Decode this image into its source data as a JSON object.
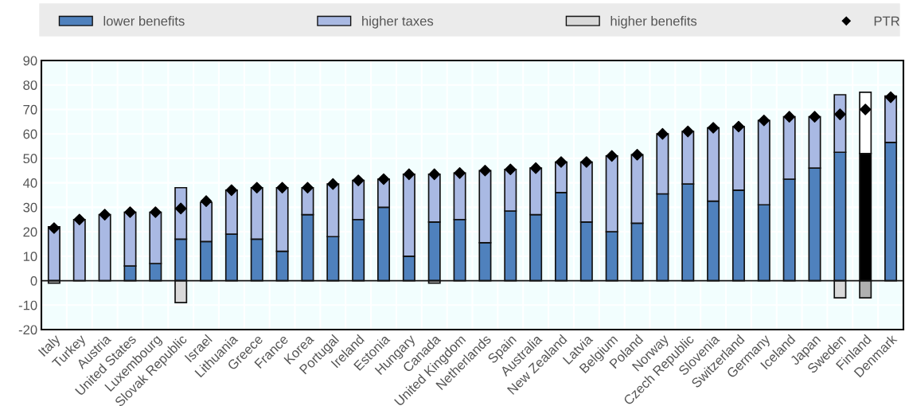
{
  "chart_data": {
    "type": "bar",
    "stacked": true,
    "legend": "top",
    "grid": true,
    "ylim": [
      -20,
      90
    ],
    "yticks": [
      -20,
      -10,
      0,
      10,
      20,
      30,
      40,
      50,
      60,
      70,
      80,
      90
    ],
    "categories": [
      "Italy",
      "Turkey",
      "Austria",
      "United States",
      "Luxembourg",
      "Slovak Republic",
      "Israel",
      "Lithuania",
      "Greece",
      "France",
      "Korea",
      "Portugal",
      "Ireland",
      "Estonia",
      "Hungary",
      "Canada",
      "United Kingdom",
      "Netherlands",
      "Spain",
      "Australia",
      "New Zealand",
      "Latvia",
      "Belgium",
      "Poland",
      "Norway",
      "Czech Republic",
      "Slovenia",
      "Switzerland",
      "Germany",
      "Iceland",
      "Japan",
      "Sweden",
      "Finland",
      "Denmark"
    ],
    "series": [
      {
        "name": "lower benefits",
        "color": "#4f81bd",
        "colors": [
          "#4f81bd",
          "#4f81bd",
          "#4f81bd",
          "#4f81bd",
          "#4f81bd",
          "#4f81bd",
          "#4f81bd",
          "#4f81bd",
          "#4f81bd",
          "#4f81bd",
          "#4f81bd",
          "#4f81bd",
          "#4f81bd",
          "#4f81bd",
          "#4f81bd",
          "#4f81bd",
          "#4f81bd",
          "#4f81bd",
          "#4f81bd",
          "#4f81bd",
          "#4f81bd",
          "#4f81bd",
          "#4f81bd",
          "#4f81bd",
          "#4f81bd",
          "#4f81bd",
          "#4f81bd",
          "#4f81bd",
          "#4f81bd",
          "#4f81bd",
          "#4f81bd",
          "#4f81bd",
          "#000000",
          "#4f81bd"
        ],
        "values": [
          0,
          0,
          0,
          6,
          7,
          17,
          16,
          19,
          17,
          12,
          27,
          18,
          25,
          30,
          10,
          24,
          25,
          15.5,
          28.5,
          27,
          36,
          24,
          20,
          23.5,
          35.5,
          39.5,
          32.5,
          37,
          31,
          41.5,
          46,
          52.5,
          52,
          56.5
        ]
      },
      {
        "name": "higher taxes",
        "color": "#a9b9e3",
        "colors": [
          "#a9b9e3",
          "#a9b9e3",
          "#a9b9e3",
          "#a9b9e3",
          "#a9b9e3",
          "#a9b9e3",
          "#a9b9e3",
          "#a9b9e3",
          "#a9b9e3",
          "#a9b9e3",
          "#a9b9e3",
          "#a9b9e3",
          "#a9b9e3",
          "#a9b9e3",
          "#a9b9e3",
          "#a9b9e3",
          "#a9b9e3",
          "#a9b9e3",
          "#a9b9e3",
          "#a9b9e3",
          "#a9b9e3",
          "#a9b9e3",
          "#a9b9e3",
          "#a9b9e3",
          "#a9b9e3",
          "#a9b9e3",
          "#a9b9e3",
          "#a9b9e3",
          "#a9b9e3",
          "#a9b9e3",
          "#a9b9e3",
          "#a9b9e3",
          "#ffffff",
          "#a9b9e3"
        ],
        "values": [
          22,
          25,
          27,
          22,
          21,
          21,
          16,
          18,
          21,
          26,
          11,
          21.5,
          16,
          11.5,
          33.5,
          19.5,
          19,
          29.5,
          17,
          19,
          12.5,
          24.5,
          31,
          28,
          24.5,
          21.5,
          30,
          26,
          34.5,
          25.5,
          21,
          23.5,
          25,
          19
        ]
      },
      {
        "name": "higher benefits",
        "color": "#d9d9d9",
        "colors": [
          "#d9d9d9",
          "#d9d9d9",
          "#d9d9d9",
          "#d9d9d9",
          "#d9d9d9",
          "#d9d9d9",
          "#d9d9d9",
          "#d9d9d9",
          "#d9d9d9",
          "#d9d9d9",
          "#d9d9d9",
          "#d9d9d9",
          "#d9d9d9",
          "#d9d9d9",
          "#d9d9d9",
          "#d9d9d9",
          "#d9d9d9",
          "#d9d9d9",
          "#d9d9d9",
          "#d9d9d9",
          "#d9d9d9",
          "#d9d9d9",
          "#d9d9d9",
          "#d9d9d9",
          "#d9d9d9",
          "#d9d9d9",
          "#d9d9d9",
          "#d9d9d9",
          "#d9d9d9",
          "#d9d9d9",
          "#d9d9d9",
          "#d9d9d9",
          "#b0b0b0",
          "#d9d9d9"
        ],
        "values": [
          -1,
          0,
          0,
          0,
          0,
          -9,
          0,
          0,
          0,
          0,
          0,
          0,
          0,
          0,
          0,
          -1,
          0,
          0,
          0,
          0,
          0,
          0,
          0,
          0,
          0,
          0,
          0,
          0,
          0,
          0,
          0,
          -7,
          -7,
          0
        ]
      },
      {
        "name": "PTR",
        "type": "scatter",
        "marker": "diamond",
        "color": "#000000",
        "values": [
          21.5,
          25,
          27,
          28,
          28,
          29.5,
          32.5,
          37,
          38,
          38,
          38,
          39.5,
          41,
          41.5,
          43.5,
          43.5,
          44,
          45,
          45.5,
          46,
          48.5,
          48.5,
          51,
          51.5,
          60,
          61,
          62.5,
          63,
          65.5,
          67,
          67,
          68,
          70,
          75
        ]
      }
    ]
  }
}
